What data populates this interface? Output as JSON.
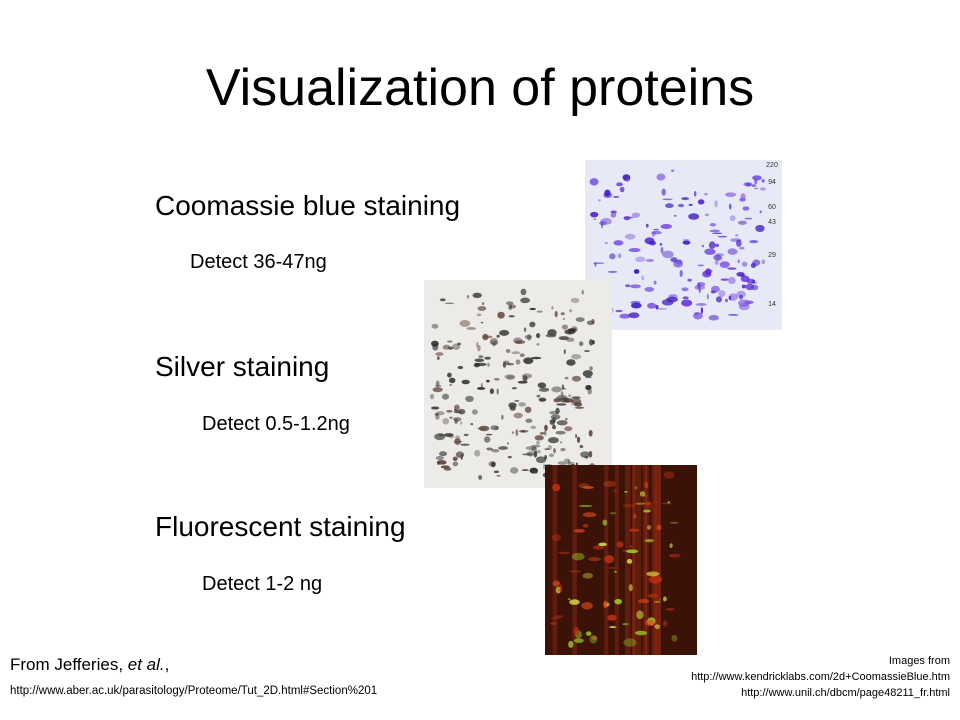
{
  "title": "Visualization of proteins",
  "items": [
    {
      "heading": "Coomassie blue staining",
      "detail": "Detect 36-47ng"
    },
    {
      "heading": "Silver staining",
      "detail": "Detect 0.5-1.2ng"
    },
    {
      "heading": "Fluorescent staining",
      "detail": "Detect 1-2 ng"
    }
  ],
  "gel_markers": [
    "220",
    "94",
    "60",
    "43",
    "29",
    "14"
  ],
  "citation": {
    "prefix": "From Jefferies, ",
    "italic": "et al.",
    "suffix": ",",
    "url": "http://www.aber.ac.uk/parasitology/Proteome/Tut_2D.html#Section%201"
  },
  "credits": {
    "label": "Images from",
    "urls": [
      "http://www.kendricklabs.com/2d+CoomassieBlue.htm",
      "http://www.unil.ch/dbcm/page48211_fr.html"
    ]
  }
}
